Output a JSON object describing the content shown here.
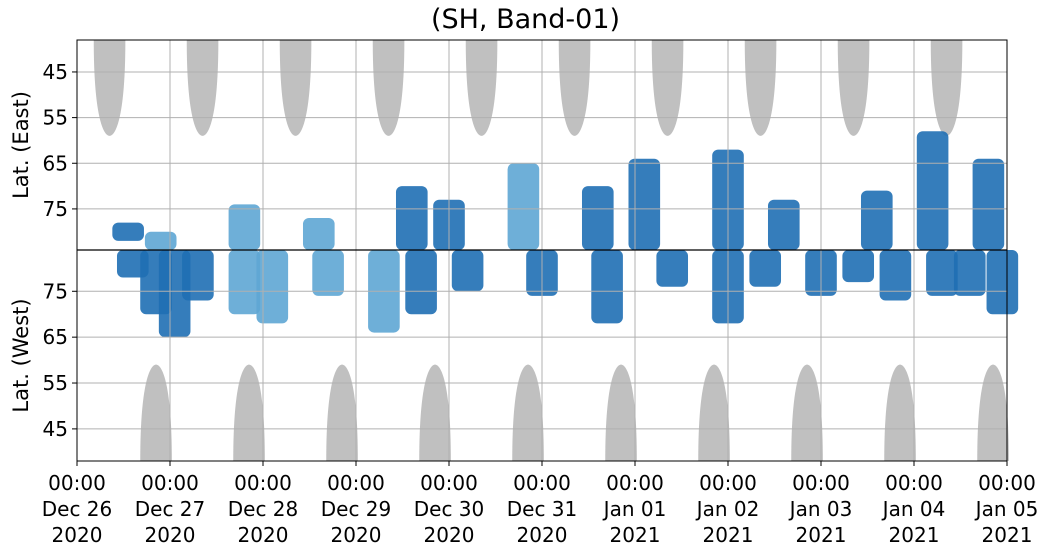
{
  "chart_data": {
    "type": "heatmap",
    "title": "(SH, Band-01)",
    "ylabel_top": "Lat. (East)",
    "ylabel_bottom": "Lat. (West)",
    "x_range": [
      "2020-12-26 00:00",
      "2021-01-05 00:00"
    ],
    "x_ticks": [
      {
        "time": "00:00",
        "date": "Dec 26",
        "year": "2020"
      },
      {
        "time": "00:00",
        "date": "Dec 27",
        "year": "2020"
      },
      {
        "time": "00:00",
        "date": "Dec 28",
        "year": "2020"
      },
      {
        "time": "00:00",
        "date": "Dec 29",
        "year": "2020"
      },
      {
        "time": "00:00",
        "date": "Dec 30",
        "year": "2020"
      },
      {
        "time": "00:00",
        "date": "Dec 31",
        "year": "2020"
      },
      {
        "time": "00:00",
        "date": "Jan 01",
        "year": "2021"
      },
      {
        "time": "00:00",
        "date": "Jan 02",
        "year": "2021"
      },
      {
        "time": "00:00",
        "date": "Jan 03",
        "year": "2021"
      },
      {
        "time": "00:00",
        "date": "Jan 04",
        "year": "2021"
      },
      {
        "time": "00:00",
        "date": "Jan 05",
        "year": "2021"
      }
    ],
    "y_ticks_east": [
      "45",
      "55",
      "65",
      "75"
    ],
    "y_ticks_west": [
      "75",
      "65",
      "55",
      "45"
    ],
    "y_range_east": [
      38,
      84
    ],
    "y_range_west": [
      84,
      38
    ],
    "grid": true,
    "colors": {
      "dense": "#1f6fb4",
      "sparse": "#5ea6d4",
      "daylight": "#bdbdbd",
      "grid": "#b0b0b0"
    },
    "daylight_east_days": [
      0.35,
      1.35,
      2.35,
      3.35,
      4.35,
      5.35,
      6.35,
      7.35,
      8.35,
      9.35
    ],
    "daylight_west_days": [
      0.85,
      1.85,
      2.85,
      3.85,
      4.85,
      5.85,
      6.85,
      7.85,
      8.85,
      9.85
    ],
    "daylight_min_lat": 59,
    "east_activity": [
      {
        "day": 0.55,
        "lat_min": 78,
        "lat_max": 82,
        "level": "dense"
      },
      {
        "day": 0.9,
        "lat_min": 80,
        "lat_max": 84,
        "level": "sparse"
      },
      {
        "day": 1.8,
        "lat_min": 74,
        "lat_max": 84,
        "level": "sparse"
      },
      {
        "day": 2.6,
        "lat_min": 77,
        "lat_max": 84,
        "level": "sparse"
      },
      {
        "day": 3.6,
        "lat_min": 70,
        "lat_max": 84,
        "level": "dense"
      },
      {
        "day": 4.0,
        "lat_min": 73,
        "lat_max": 84,
        "level": "dense"
      },
      {
        "day": 4.8,
        "lat_min": 65,
        "lat_max": 84,
        "level": "sparse"
      },
      {
        "day": 5.6,
        "lat_min": 70,
        "lat_max": 84,
        "level": "dense"
      },
      {
        "day": 6.1,
        "lat_min": 64,
        "lat_max": 84,
        "level": "dense"
      },
      {
        "day": 7.0,
        "lat_min": 62,
        "lat_max": 84,
        "level": "dense"
      },
      {
        "day": 7.6,
        "lat_min": 73,
        "lat_max": 84,
        "level": "dense"
      },
      {
        "day": 8.6,
        "lat_min": 71,
        "lat_max": 84,
        "level": "dense"
      },
      {
        "day": 9.2,
        "lat_min": 58,
        "lat_max": 84,
        "level": "dense"
      },
      {
        "day": 9.8,
        "lat_min": 64,
        "lat_max": 84,
        "level": "dense"
      }
    ],
    "west_activity": [
      {
        "day": 0.6,
        "lat_min": 78,
        "lat_max": 84,
        "level": "dense"
      },
      {
        "day": 0.85,
        "lat_min": 70,
        "lat_max": 84,
        "level": "dense"
      },
      {
        "day": 1.05,
        "lat_min": 65,
        "lat_max": 84,
        "level": "dense"
      },
      {
        "day": 1.3,
        "lat_min": 73,
        "lat_max": 84,
        "level": "dense"
      },
      {
        "day": 1.8,
        "lat_min": 70,
        "lat_max": 84,
        "level": "sparse"
      },
      {
        "day": 2.1,
        "lat_min": 68,
        "lat_max": 84,
        "level": "sparse"
      },
      {
        "day": 2.7,
        "lat_min": 74,
        "lat_max": 84,
        "level": "sparse"
      },
      {
        "day": 3.3,
        "lat_min": 66,
        "lat_max": 84,
        "level": "sparse"
      },
      {
        "day": 3.7,
        "lat_min": 70,
        "lat_max": 84,
        "level": "dense"
      },
      {
        "day": 4.2,
        "lat_min": 75,
        "lat_max": 84,
        "level": "dense"
      },
      {
        "day": 5.0,
        "lat_min": 74,
        "lat_max": 84,
        "level": "dense"
      },
      {
        "day": 5.7,
        "lat_min": 68,
        "lat_max": 84,
        "level": "dense"
      },
      {
        "day": 6.4,
        "lat_min": 76,
        "lat_max": 84,
        "level": "dense"
      },
      {
        "day": 7.0,
        "lat_min": 68,
        "lat_max": 84,
        "level": "dense"
      },
      {
        "day": 7.4,
        "lat_min": 76,
        "lat_max": 84,
        "level": "dense"
      },
      {
        "day": 8.0,
        "lat_min": 74,
        "lat_max": 84,
        "level": "dense"
      },
      {
        "day": 8.4,
        "lat_min": 77,
        "lat_max": 84,
        "level": "dense"
      },
      {
        "day": 8.8,
        "lat_min": 73,
        "lat_max": 84,
        "level": "dense"
      },
      {
        "day": 9.3,
        "lat_min": 74,
        "lat_max": 84,
        "level": "dense"
      },
      {
        "day": 9.6,
        "lat_min": 74,
        "lat_max": 84,
        "level": "dense"
      },
      {
        "day": 9.95,
        "lat_min": 70,
        "lat_max": 84,
        "level": "dense"
      }
    ]
  }
}
